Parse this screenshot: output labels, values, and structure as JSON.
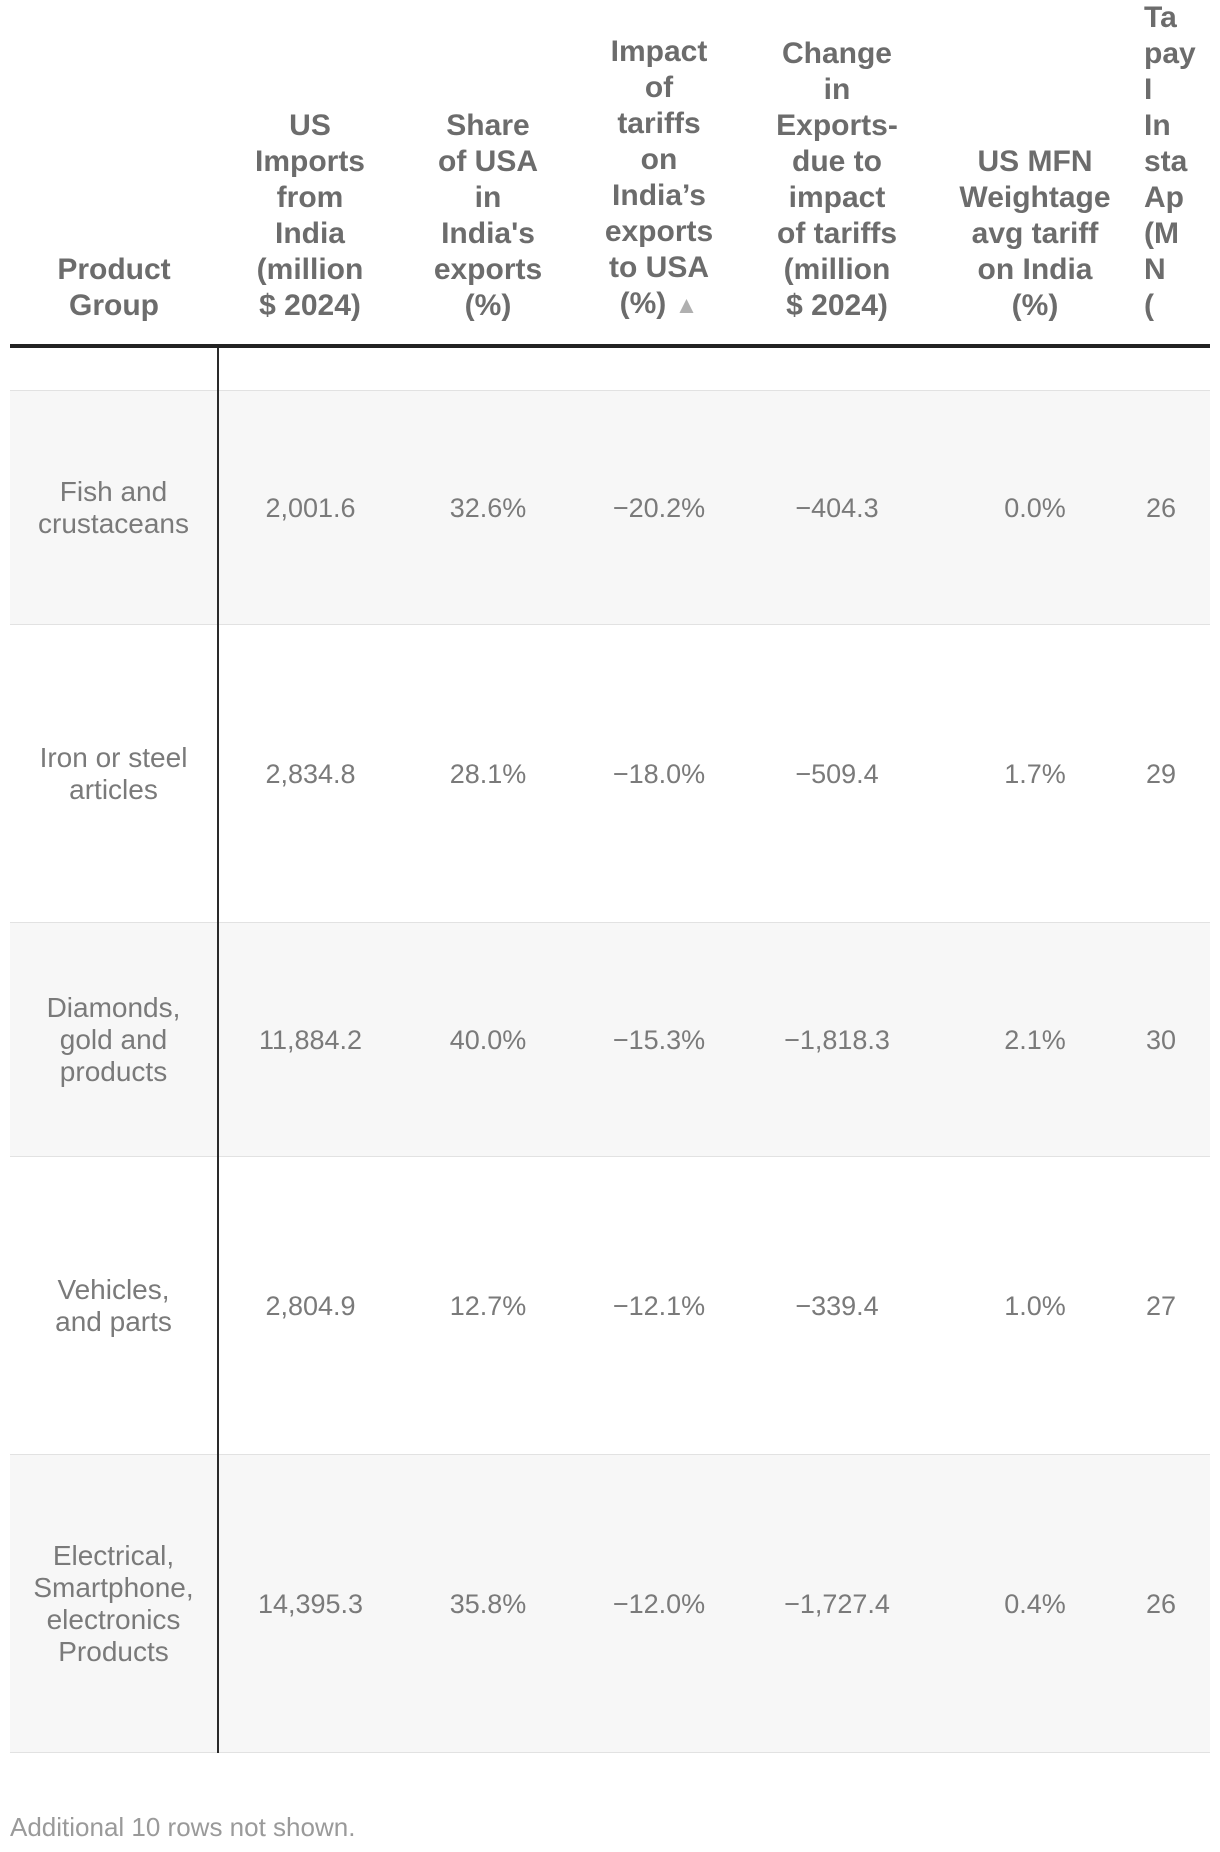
{
  "table": {
    "headers": [
      "Product Group",
      "US Imports from India (million $ 2024)",
      "Share of USA in India's exports (%)",
      "Impact of tariffs on India’s exports to USA (%)",
      "Change in Exports- due to impact of tariffs (million $ 2024)",
      "US MFN Weightage avg tariff on India (%)",
      "Tariff paying Indian standard Applied (MFN+)"
    ],
    "header_lines": [
      [
        "Product",
        "Group"
      ],
      [
        "US",
        "Imports",
        "from",
        "India",
        "(million",
        "$ 2024)"
      ],
      [
        "Share",
        "of USA",
        "in",
        "India's",
        "exports",
        "(%)"
      ],
      [
        "Impact",
        "of",
        "tariffs",
        "on",
        "India’s",
        "exports",
        "to USA",
        "(%)"
      ],
      [
        "Change",
        "in",
        "Exports-",
        "due to",
        "impact",
        "of tariffs",
        "(million",
        "$ 2024)"
      ],
      [
        "US MFN",
        "Weightage",
        "avg tariff",
        "on India",
        "(%)"
      ],
      [
        "Ta",
        "pay",
        "I",
        "In",
        "sta",
        "Ap",
        "(M",
        "N",
        "("
      ]
    ],
    "sort_indicator": "▲",
    "rows": [
      {
        "group": [
          "Fish and",
          "crustaceans"
        ],
        "imports": "2,001.6",
        "share": "32.6%",
        "impact": "−20.2%",
        "change": "−404.3",
        "mfn": "0.0%",
        "tariff": "26"
      },
      {
        "group": [
          "Iron or steel",
          "articles"
        ],
        "imports": "2,834.8",
        "share": "28.1%",
        "impact": "−18.0%",
        "change": "−509.4",
        "mfn": "1.7%",
        "tariff": "29"
      },
      {
        "group": [
          "Diamonds,",
          "gold and",
          "products"
        ],
        "imports": "11,884.2",
        "share": "40.0%",
        "impact": "−15.3%",
        "change": "−1,818.3",
        "mfn": "2.1%",
        "tariff": "30"
      },
      {
        "group": [
          "Vehicles,",
          "and parts"
        ],
        "imports": "2,804.9",
        "share": "12.7%",
        "impact": "−12.1%",
        "change": "−339.4",
        "mfn": "1.0%",
        "tariff": "27"
      },
      {
        "group": [
          "Electrical,",
          "Smartphone,",
          "electronics",
          "Products"
        ],
        "imports": "14,395.3",
        "share": "35.8%",
        "impact": "−12.0%",
        "change": "−1,727.4",
        "mfn": "0.4%",
        "tariff": "26"
      }
    ]
  },
  "footer": "Additional 10 rows not shown."
}
